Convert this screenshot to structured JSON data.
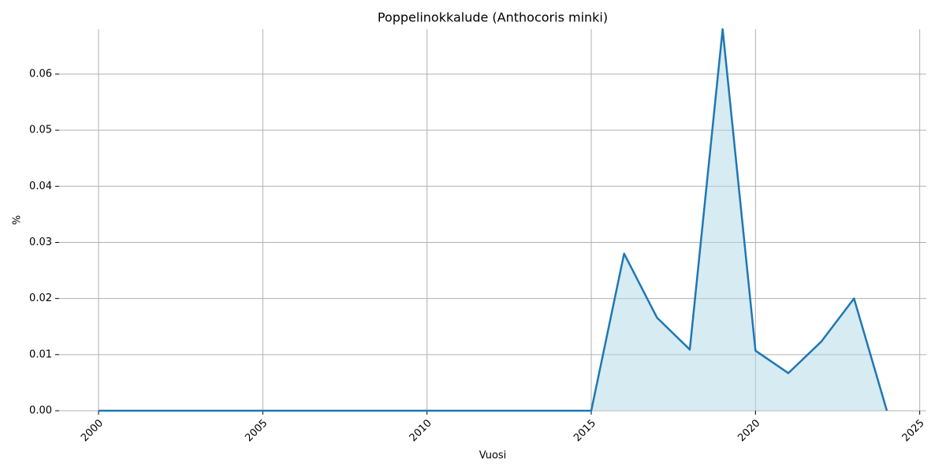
{
  "chart_data": {
    "type": "area",
    "title": "Poppelinokkalude (Anthocoris minki)",
    "x_label": "Vuosi",
    "y_label": "%",
    "x": [
      2000,
      2001,
      2002,
      2003,
      2004,
      2005,
      2006,
      2007,
      2008,
      2009,
      2010,
      2011,
      2012,
      2013,
      2014,
      2015,
      2016,
      2017,
      2018,
      2019,
      2020,
      2021,
      2022,
      2023,
      2024
    ],
    "series": [
      {
        "name": "Poppelinokkalude",
        "color": "#1f77b4",
        "fill_color": "#add8e6",
        "values": [
          0,
          0,
          0,
          0,
          0,
          0,
          0,
          0,
          0,
          0,
          0,
          0,
          0,
          0,
          0,
          0,
          0.028,
          0.0166,
          0.0109,
          0.068,
          0.0107,
          0.0067,
          0.0123,
          0.02,
          0
        ]
      }
    ],
    "xlim": [
      1998.8,
      2025.2
    ],
    "xticks": [
      2000,
      2005,
      2010,
      2015,
      2020,
      2025
    ],
    "ylim": [
      0,
      0.068
    ],
    "yticks": [
      {
        "value": 0,
        "label": "0.00"
      },
      0.01,
      0.02,
      0.03,
      0.04,
      0.05,
      0.06
    ],
    "grid": true
  }
}
